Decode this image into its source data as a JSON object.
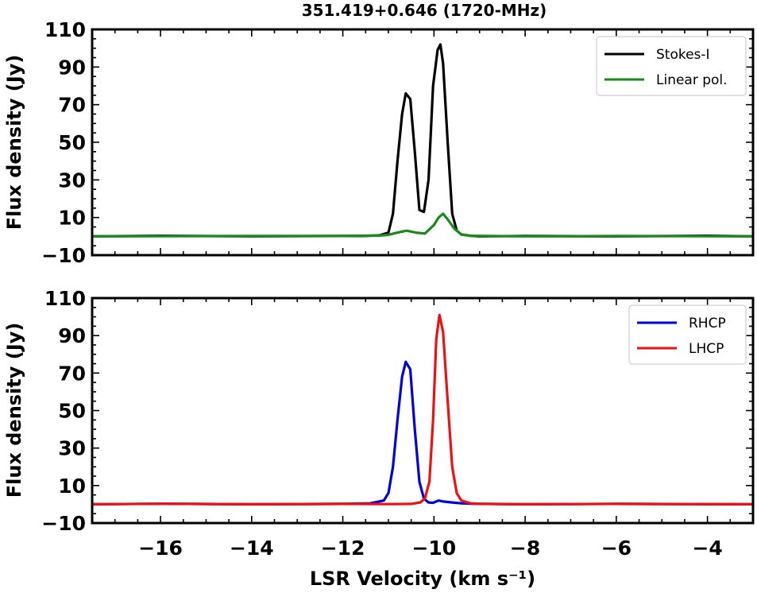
{
  "title": "351.419+0.646 (1720-MHz)",
  "chart_data": [
    {
      "type": "line",
      "ylabel": "Flux density (Jy)",
      "xlabel": "",
      "xlim": [
        -17.5,
        -3
      ],
      "ylim": [
        -10,
        110
      ],
      "yticks": [
        -10,
        10,
        30,
        50,
        70,
        90,
        110
      ],
      "xticks": [
        -16,
        -14,
        -12,
        -10,
        -8,
        -6,
        -4
      ],
      "show_xtick_labels": false,
      "grid": false,
      "legend_position": "top-right",
      "series": [
        {
          "name": "Stokes-I",
          "color": "#000000",
          "x": [
            -17.5,
            -16,
            -14,
            -12,
            -11.6,
            -11.2,
            -11.0,
            -10.9,
            -10.8,
            -10.7,
            -10.62,
            -10.52,
            -10.42,
            -10.32,
            -10.22,
            -10.12,
            -10.02,
            -9.92,
            -9.86,
            -9.8,
            -9.7,
            -9.6,
            -9.5,
            -9.4,
            -9.2,
            -9.0,
            -8,
            -6,
            -4,
            -3
          ],
          "y": [
            0,
            0.3,
            0,
            0.2,
            0.2,
            0.5,
            2,
            12,
            40,
            65,
            76,
            73,
            45,
            14,
            13,
            30,
            80,
            99,
            102,
            92,
            50,
            12,
            3,
            1,
            0.3,
            0,
            0.2,
            0,
            0.3,
            0
          ]
        },
        {
          "name": "Linear pol.",
          "color": "#1a8a1a",
          "x": [
            -17.5,
            -14,
            -12,
            -11.2,
            -11.0,
            -10.8,
            -10.6,
            -10.4,
            -10.2,
            -10.0,
            -9.9,
            -9.8,
            -9.7,
            -9.55,
            -9.4,
            -9.2,
            -8,
            -6,
            -3
          ],
          "y": [
            0,
            0.2,
            0.2,
            0.4,
            0.8,
            2,
            3,
            2,
            1.5,
            6,
            10,
            12,
            9,
            4,
            1,
            0.3,
            0,
            0.2,
            0
          ]
        }
      ]
    },
    {
      "type": "line",
      "ylabel": "Flux density (Jy)",
      "xlabel": "LSR Velocity (km s⁻¹)",
      "xlim": [
        -17.5,
        -3
      ],
      "ylim": [
        -10,
        110
      ],
      "yticks": [
        -10,
        10,
        30,
        50,
        70,
        90,
        110
      ],
      "xticks": [
        -16,
        -14,
        -12,
        -10,
        -8,
        -6,
        -4
      ],
      "xtick_labels": [
        "−16",
        "−14",
        "−12",
        "−10",
        "−8",
        "−6",
        "−4"
      ],
      "show_xtick_labels": true,
      "grid": false,
      "legend_position": "top-right",
      "series": [
        {
          "name": "RHCP",
          "color": "#0000dd",
          "x": [
            -17.5,
            -16,
            -14,
            -12,
            -11.4,
            -11.1,
            -11.0,
            -10.9,
            -10.8,
            -10.7,
            -10.62,
            -10.52,
            -10.42,
            -10.32,
            -10.22,
            -10.12,
            -10.02,
            -9.9,
            -9.8,
            -9.6,
            -9.4,
            -9.2,
            -8,
            -6,
            -3
          ],
          "y": [
            0,
            0.3,
            0,
            0.2,
            0.5,
            2,
            6,
            20,
            45,
            68,
            76,
            72,
            40,
            12,
            3,
            1,
            0.8,
            2,
            1.5,
            1,
            0.5,
            0.3,
            0,
            0.2,
            0
          ]
        },
        {
          "name": "LHCP",
          "color": "#ee1111",
          "x": [
            -17.5,
            -16,
            -14,
            -12,
            -11,
            -10.5,
            -10.3,
            -10.2,
            -10.1,
            -10.02,
            -9.95,
            -9.88,
            -9.8,
            -9.7,
            -9.6,
            -9.5,
            -9.4,
            -9.2,
            -9.0,
            -8,
            -6,
            -3
          ],
          "y": [
            0,
            0.3,
            0,
            0.2,
            0.1,
            0.2,
            1,
            3,
            12,
            45,
            88,
            101,
            92,
            55,
            20,
            6,
            2,
            0.5,
            0.2,
            0,
            0.2,
            0
          ]
        }
      ]
    }
  ],
  "legend": {
    "top": [
      "Stokes-I",
      "Linear pol."
    ],
    "bottom": [
      "RHCP",
      "LHCP"
    ]
  }
}
